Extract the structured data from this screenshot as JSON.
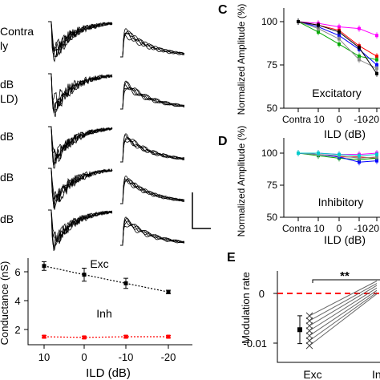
{
  "traces": {
    "row_labels": [
      "Contra",
      "ly",
      "dB",
      "LD)",
      "dB",
      "dB",
      "dB"
    ]
  },
  "panel_c": {
    "letter": "C",
    "ylabel": "Normalized Amplitude (%)",
    "xlabel": "ILD (dB)",
    "inner_label": "Excitatory",
    "yticks": [
      "100",
      "75",
      "50"
    ],
    "xticks": [
      "Contra",
      "10",
      "0",
      "-10",
      "-20"
    ]
  },
  "panel_d": {
    "letter": "D",
    "ylabel": "Normalized Amplitude (%)",
    "xlabel": "ILD (dB)",
    "inner_label": "Inhibitory",
    "yticks": [
      "100",
      "75",
      "50"
    ],
    "xticks": [
      "Contra",
      "10",
      "0",
      "-10",
      "-20"
    ]
  },
  "panel_e": {
    "letter": "E",
    "ylabel": "Modulation rate",
    "yticks": [
      "0",
      "-0.01"
    ],
    "xticks": [
      "Exc",
      "Inh"
    ],
    "significance": "**"
  },
  "panel_conductance": {
    "ylabel": "Conductance (nS)",
    "xlabel": "ILD (dB)",
    "yticks": [
      "6",
      "4",
      "2"
    ],
    "xticks": [
      "10",
      "0",
      "-10",
      "-20"
    ],
    "series_labels": [
      "Exc",
      "Inh"
    ]
  },
  "chart_data": [
    {
      "type": "line",
      "panel": "C",
      "inner_label": "Excitatory",
      "x": [
        "Contra",
        "10",
        "0",
        "-10",
        "-20"
      ],
      "ylabel": "Normalized Amplitude (%)",
      "xlabel": "ILD (dB)",
      "ylim": [
        50,
        105
      ],
      "series": [
        {
          "color": "#ff00ff",
          "values": [
            100,
            99,
            97,
            96,
            92
          ]
        },
        {
          "color": "#ff0000",
          "values": [
            100,
            98,
            95,
            86,
            80
          ]
        },
        {
          "color": "#00aa00",
          "values": [
            100,
            94,
            87,
            80,
            78
          ]
        },
        {
          "color": "#0000ff",
          "values": [
            100,
            97,
            92,
            84,
            75
          ]
        },
        {
          "color": "#888888",
          "values": [
            100,
            96,
            90,
            78,
            73
          ]
        },
        {
          "color": "#000000",
          "values": [
            100,
            98,
            94,
            85,
            70
          ]
        }
      ]
    },
    {
      "type": "line",
      "panel": "D",
      "inner_label": "Inhibitory",
      "x": [
        "Contra",
        "10",
        "0",
        "-10",
        "-20"
      ],
      "ylabel": "Normalized Amplitude (%)",
      "xlabel": "ILD (dB)",
      "ylim": [
        50,
        105
      ],
      "series": [
        {
          "color": "#ff00ff",
          "values": [
            100,
            100,
            99,
            99,
            100
          ]
        },
        {
          "color": "#ff0000",
          "values": [
            100,
            99,
            97,
            97,
            96
          ]
        },
        {
          "color": "#00aa00",
          "values": [
            100,
            98,
            96,
            95,
            96
          ]
        },
        {
          "color": "#0000ff",
          "values": [
            100,
            99,
            97,
            93,
            94
          ]
        },
        {
          "color": "#888888",
          "values": [
            100,
            99,
            98,
            96,
            97
          ]
        },
        {
          "color": "#00cccc",
          "values": [
            100,
            100,
            99,
            98,
            99
          ]
        }
      ]
    },
    {
      "type": "line",
      "panel": "conductance",
      "x": [
        "10",
        "0",
        "-10",
        "-20"
      ],
      "ylabel": "Conductance (nS)",
      "xlabel": "ILD (dB)",
      "ylim": [
        0,
        8
      ],
      "series": [
        {
          "name": "Exc",
          "color": "#000000",
          "values": [
            6.4,
            5.8,
            5.2,
            4.6
          ],
          "errors": [
            0.3,
            0.45,
            0.35,
            0.12
          ]
        },
        {
          "name": "Inh",
          "color": "#ff0000",
          "values": [
            1.5,
            1.45,
            1.5,
            1.5
          ],
          "errors": [
            0.08,
            0.08,
            0.08,
            0.08
          ]
        }
      ]
    },
    {
      "type": "scatter",
      "panel": "E",
      "ylabel": "Modulation rate",
      "categories": [
        "Exc",
        "Inh"
      ],
      "ylim": [
        -0.014,
        0.004
      ],
      "exc_points": [
        -0.0045,
        -0.0055,
        -0.0065,
        -0.0075,
        -0.0085,
        -0.0095,
        -0.0105
      ],
      "exc_mean": -0.0073,
      "exc_sem": 0.0028,
      "inh_values": [
        0.0025,
        0.002,
        0.0016,
        0.0011,
        0.0006,
        0.0002,
        -0.0001
      ]
    }
  ]
}
